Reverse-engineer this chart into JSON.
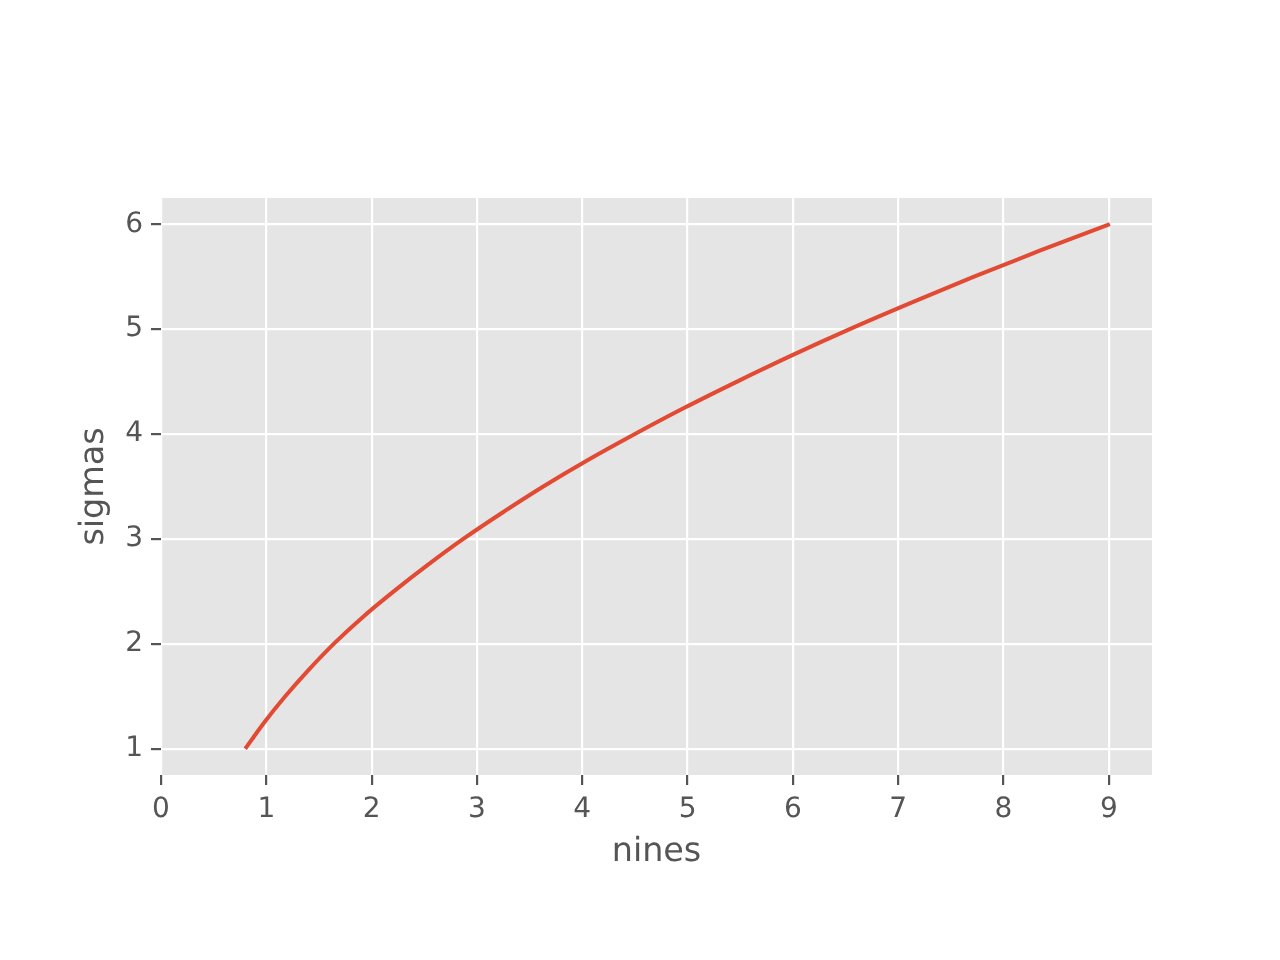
{
  "chart_data": {
    "type": "line",
    "xlabel": "nines",
    "ylabel": "sigmas",
    "x": [
      0.8,
      0.98,
      1.18,
      1.4,
      1.64,
      1.91,
      2.21,
      2.53,
      2.87,
      3.24,
      3.63,
      4.05,
      4.5,
      4.97,
      5.47,
      5.99,
      6.54,
      7.12,
      7.72,
      8.35,
      9.01
    ],
    "values": [
      1,
      1.25,
      1.5,
      1.75,
      2,
      2.25,
      2.5,
      2.75,
      3,
      3.25,
      3.5,
      3.75,
      4,
      4.25,
      4.5,
      4.75,
      5,
      5.25,
      5.5,
      5.75,
      6
    ],
    "color": "#e24a33",
    "xlim": [
      0,
      9.41
    ],
    "ylim": [
      0.75,
      6.25
    ],
    "xticks": [
      0,
      1,
      2,
      3,
      4,
      5,
      6,
      7,
      8,
      9
    ],
    "yticks": [
      1,
      2,
      3,
      4,
      5,
      6
    ],
    "grid": true
  }
}
